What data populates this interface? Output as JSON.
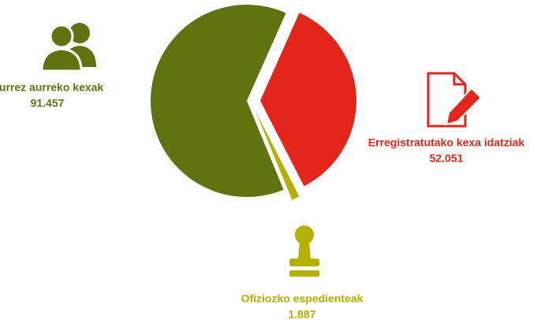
{
  "chart_data": {
    "type": "pie",
    "categories": [
      "Erregistratutako kexa idatziak",
      "Ofiziozko espedienteak",
      "Aurrez aurreko kexak"
    ],
    "values": [
      52051,
      1887,
      91457
    ],
    "value_labels": [
      "52.051",
      "1.887",
      "91.457"
    ],
    "colors": [
      "#e3261c",
      "#b5b000",
      "#5f7310"
    ]
  }
}
